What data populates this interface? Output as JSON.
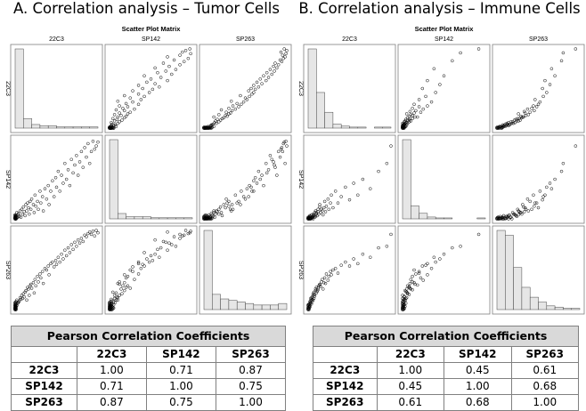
{
  "figure": {
    "panels": [
      {
        "title": "A. Correlation analysis – Tumor Cells",
        "matrix_title": "Scatter Plot Matrix",
        "table_caption": "Pearson Correlation Coefficients",
        "table_cols": [
          "22C3",
          "SP142",
          "SP263"
        ],
        "table_rows": [
          {
            "label": "22C3",
            "values": [
              "1.00",
              "0.71",
              "0.87"
            ]
          },
          {
            "label": "SP142",
            "values": [
              "0.71",
              "1.00",
              "0.75"
            ]
          },
          {
            "label": "SP263",
            "values": [
              "0.87",
              "0.75",
              "1.00"
            ]
          }
        ]
      },
      {
        "title": "B. Correlation analysis – Immune Cells",
        "matrix_title": "Scatter Plot Matrix",
        "table_caption": "Pearson Correlation Coefficients",
        "table_cols": [
          "22C3",
          "SP142",
          "SP263"
        ],
        "table_rows": [
          {
            "label": "22C3",
            "values": [
              "1.00",
              "0.45",
              "0.61"
            ]
          },
          {
            "label": "SP142",
            "values": [
              "0.45",
              "1.00",
              "0.68"
            ]
          },
          {
            "label": "SP263",
            "values": [
              "0.61",
              "0.68",
              "1.00"
            ]
          }
        ]
      }
    ]
  },
  "chart_data": [
    {
      "type": "scatter",
      "title": "Scatter Plot Matrix",
      "subtitle": "Tumor Cells",
      "variables": [
        "22C3",
        "SP142",
        "SP263"
      ],
      "axis_range": [
        0,
        100
      ],
      "grid": false,
      "legend": "none",
      "diagonal": {
        "type": "histogram",
        "bins": 10
      },
      "correlations": [
        [
          1.0,
          0.71,
          0.87
        ],
        [
          0.71,
          1.0,
          0.75
        ],
        [
          0.87,
          0.75,
          1.0
        ]
      ],
      "histograms": {
        "22C3": [
          66,
          8,
          3,
          2,
          2,
          1,
          1,
          1,
          1,
          1
        ],
        "SP142": [
          74,
          5,
          2,
          2,
          2,
          1,
          1,
          1,
          1,
          1
        ],
        "SP263": [
          52,
          10,
          7,
          6,
          5,
          4,
          3,
          3,
          3,
          4
        ]
      },
      "points": [
        [
          0,
          0,
          0
        ],
        [
          0,
          0,
          0
        ],
        [
          0,
          0,
          1
        ],
        [
          0,
          1,
          0
        ],
        [
          1,
          0,
          0
        ],
        [
          0,
          0,
          1
        ],
        [
          0,
          1,
          2
        ],
        [
          1,
          0,
          1
        ],
        [
          0,
          0,
          2
        ],
        [
          0,
          2,
          0
        ],
        [
          1,
          1,
          1
        ],
        [
          0,
          0,
          3
        ],
        [
          1,
          0,
          2
        ],
        [
          0,
          1,
          1
        ],
        [
          0,
          3,
          0
        ],
        [
          0,
          0,
          4
        ],
        [
          1,
          2,
          0
        ],
        [
          0,
          1,
          3
        ],
        [
          0,
          0,
          5
        ],
        [
          1,
          0,
          3
        ],
        [
          0,
          2,
          2
        ],
        [
          1,
          1,
          4
        ],
        [
          0,
          4,
          1
        ],
        [
          0,
          0,
          6
        ],
        [
          1,
          3,
          2
        ],
        [
          0,
          1,
          5
        ],
        [
          0,
          2,
          3
        ],
        [
          1,
          0,
          4
        ],
        [
          0,
          0,
          7
        ],
        [
          0,
          5,
          2
        ],
        [
          1,
          2,
          6
        ],
        [
          0,
          1,
          8
        ],
        [
          1,
          4,
          3
        ],
        [
          0,
          0,
          9
        ],
        [
          0,
          3,
          4
        ],
        [
          1,
          1,
          10
        ],
        [
          0,
          2,
          5
        ],
        [
          1,
          0,
          8
        ],
        [
          0,
          5,
          6
        ],
        [
          1,
          3,
          7
        ],
        [
          2,
          1,
          5
        ],
        [
          3,
          2,
          8
        ],
        [
          4,
          5,
          10
        ],
        [
          2,
          8,
          12
        ],
        [
          5,
          3,
          11
        ],
        [
          6,
          10,
          15
        ],
        [
          4,
          7,
          9
        ],
        [
          7,
          2,
          13
        ],
        [
          8,
          12,
          18
        ],
        [
          9,
          6,
          14
        ],
        [
          10,
          15,
          20
        ],
        [
          11,
          9,
          16
        ],
        [
          12,
          4,
          22
        ],
        [
          13,
          18,
          24
        ],
        [
          14,
          10,
          12
        ],
        [
          15,
          20,
          28
        ],
        [
          16,
          14,
          26
        ],
        [
          17,
          6,
          18
        ],
        [
          18,
          22,
          30
        ],
        [
          19,
          12,
          32
        ],
        [
          20,
          25,
          27
        ],
        [
          22,
          18,
          34
        ],
        [
          23,
          8,
          21
        ],
        [
          24,
          30,
          38
        ],
        [
          25,
          16,
          30
        ],
        [
          27,
          22,
          42
        ],
        [
          28,
          12,
          35
        ],
        [
          30,
          35,
          45
        ],
        [
          31,
          20,
          40
        ],
        [
          33,
          28,
          48
        ],
        [
          34,
          10,
          33
        ],
        [
          36,
          38,
          52
        ],
        [
          38,
          25,
          50
        ],
        [
          40,
          42,
          55
        ],
        [
          41,
          18,
          44
        ],
        [
          43,
          35,
          58
        ],
        [
          45,
          48,
          60
        ],
        [
          47,
          28,
          54
        ],
        [
          49,
          52,
          62
        ],
        [
          50,
          40,
          57
        ],
        [
          52,
          60,
          66
        ],
        [
          54,
          35,
          60
        ],
        [
          56,
          55,
          70
        ],
        [
          58,
          45,
          64
        ],
        [
          60,
          70,
          75
        ],
        [
          62,
          50,
          68
        ],
        [
          64,
          62,
          78
        ],
        [
          66,
          42,
          72
        ],
        [
          68,
          75,
          82
        ],
        [
          70,
          58,
          76
        ],
        [
          72,
          68,
          85
        ],
        [
          74,
          80,
          80
        ],
        [
          76,
          55,
          88
        ],
        [
          78,
          72,
          84
        ],
        [
          80,
          85,
          90
        ],
        [
          82,
          65,
          86
        ],
        [
          84,
          90,
          94
        ],
        [
          86,
          78,
          92
        ],
        [
          88,
          95,
          96
        ],
        [
          90,
          70,
          98
        ],
        [
          92,
          85,
          95
        ],
        [
          94,
          98,
          99
        ],
        [
          96,
          88,
          93
        ],
        [
          98,
          92,
          100
        ],
        [
          100,
          97,
          97
        ]
      ]
    },
    {
      "type": "scatter",
      "title": "Scatter Plot Matrix",
      "subtitle": "Immune Cells",
      "variables": [
        "22C3",
        "SP142",
        "SP263"
      ],
      "axis_range": [
        0,
        100
      ],
      "grid": false,
      "legend": "none",
      "diagonal": {
        "type": "histogram",
        "bins": 10
      },
      "correlations": [
        [
          1.0,
          0.45,
          0.61
        ],
        [
          0.45,
          1.0,
          0.68
        ],
        [
          0.61,
          0.68,
          1.0
        ]
      ],
      "histograms": {
        "22C3": [
          80,
          36,
          16,
          4,
          2,
          1,
          1,
          0,
          1,
          1
        ],
        "SP142": [
          86,
          14,
          6,
          2,
          1,
          1,
          0,
          0,
          0,
          1
        ],
        "SP263": [
          64,
          60,
          34,
          18,
          10,
          6,
          3,
          2,
          1,
          1
        ]
      },
      "points": [
        [
          0,
          0,
          0
        ],
        [
          0,
          0,
          1
        ],
        [
          0,
          1,
          0
        ],
        [
          1,
          0,
          0
        ],
        [
          0,
          0,
          2
        ],
        [
          1,
          1,
          1
        ],
        [
          0,
          1,
          3
        ],
        [
          1,
          0,
          2
        ],
        [
          0,
          2,
          1
        ],
        [
          1,
          1,
          4
        ],
        [
          0,
          0,
          5
        ],
        [
          2,
          0,
          3
        ],
        [
          1,
          2,
          2
        ],
        [
          0,
          1,
          6
        ],
        [
          2,
          1,
          5
        ],
        [
          1,
          0,
          7
        ],
        [
          2,
          3,
          4
        ],
        [
          3,
          0,
          8
        ],
        [
          1,
          2,
          6
        ],
        [
          3,
          1,
          9
        ],
        [
          2,
          0,
          10
        ],
        [
          4,
          2,
          7
        ],
        [
          3,
          3,
          11
        ],
        [
          4,
          1,
          12
        ],
        [
          2,
          4,
          8
        ],
        [
          5,
          2,
          13
        ],
        [
          3,
          0,
          14
        ],
        [
          5,
          1,
          10
        ],
        [
          4,
          5,
          15
        ],
        [
          6,
          3,
          12
        ],
        [
          5,
          2,
          16
        ],
        [
          6,
          0,
          18
        ],
        [
          7,
          4,
          14
        ],
        [
          6,
          6,
          20
        ],
        [
          8,
          2,
          17
        ],
        [
          7,
          5,
          22
        ],
        [
          8,
          8,
          19
        ],
        [
          9,
          3,
          24
        ],
        [
          10,
          6,
          21
        ],
        [
          9,
          10,
          26
        ],
        [
          11,
          4,
          23
        ],
        [
          10,
          8,
          28
        ],
        [
          12,
          12,
          25
        ],
        [
          13,
          6,
          30
        ],
        [
          12,
          9,
          27
        ],
        [
          14,
          15,
          32
        ],
        [
          15,
          8,
          29
        ],
        [
          16,
          12,
          35
        ],
        [
          14,
          18,
          31
        ],
        [
          17,
          10,
          38
        ],
        [
          18,
          5,
          26
        ],
        [
          19,
          14,
          34
        ],
        [
          20,
          22,
          40
        ],
        [
          21,
          9,
          33
        ],
        [
          22,
          16,
          45
        ],
        [
          24,
          25,
          37
        ],
        [
          25,
          12,
          42
        ],
        [
          27,
          20,
          48
        ],
        [
          28,
          30,
          44
        ],
        [
          30,
          14,
          50
        ],
        [
          33,
          35,
          52
        ],
        [
          36,
          20,
          46
        ],
        [
          40,
          28,
          56
        ],
        [
          45,
          40,
          60
        ],
        [
          50,
          24,
          55
        ],
        [
          55,
          45,
          64
        ],
        [
          60,
          30,
          58
        ],
        [
          66,
          50,
          70
        ],
        [
          75,
          38,
          66
        ],
        [
          85,
          60,
          78
        ],
        [
          95,
          70,
          80
        ],
        [
          100,
          92,
          95
        ]
      ]
    }
  ]
}
